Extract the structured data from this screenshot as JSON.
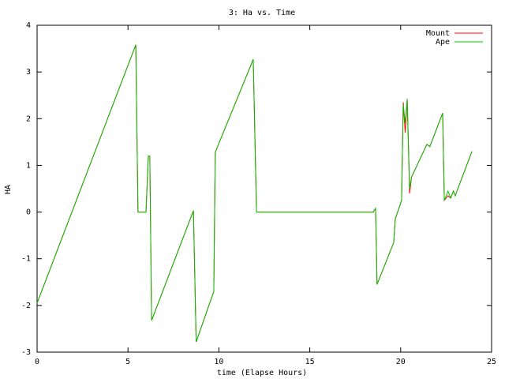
{
  "chart_data": {
    "type": "line",
    "title": "3: Ha vs. Time",
    "x_label": "time (Elapse Hours)",
    "y_label": "HA",
    "x": [
      0,
      5.43,
      5.55,
      5.99,
      6.12,
      6.2,
      6.3,
      8.6,
      8.75,
      9.72,
      9.8,
      11.89,
      12.07,
      18.49,
      18.62,
      18.7,
      19.62,
      19.7,
      20.05,
      20.14,
      20.25,
      20.36,
      20.49,
      20.6,
      21.44,
      21.6,
      22.31,
      22.4,
      22.6,
      22.75,
      22.9,
      23.0,
      23.92
    ],
    "series": [
      {
        "name": "Mount",
        "color": "#ff0000",
        "values": [
          -1.95,
          3.58,
          0,
          0,
          1.2,
          1.2,
          -2.32,
          0.03,
          -2.78,
          -1.7,
          1.28,
          3.27,
          0,
          0,
          0.08,
          -1.55,
          -0.65,
          -0.15,
          0.25,
          2.35,
          1.7,
          2.42,
          0.4,
          0.75,
          1.45,
          1.4,
          2.12,
          0.25,
          0.35,
          0.3,
          0.45,
          0.35,
          1.3
        ]
      },
      {
        "name": "Ape",
        "color": "#00c000",
        "values": [
          -1.95,
          3.58,
          0,
          0,
          1.2,
          1.2,
          -2.32,
          0.03,
          -2.78,
          -1.7,
          1.28,
          3.27,
          0,
          0,
          0.08,
          -1.55,
          -0.65,
          -0.15,
          0.25,
          2.3,
          1.9,
          2.42,
          0.5,
          0.75,
          1.45,
          1.4,
          2.12,
          0.25,
          0.45,
          0.3,
          0.45,
          0.35,
          1.3
        ]
      }
    ],
    "xlim": [
      0,
      25
    ],
    "xticks": [
      0,
      5,
      10,
      15,
      20,
      25
    ],
    "ylim": [
      -3,
      4
    ],
    "yticks": [
      -3,
      -2,
      -1,
      0,
      1,
      2,
      3,
      4
    ],
    "grid": false,
    "legend": "top-right"
  }
}
